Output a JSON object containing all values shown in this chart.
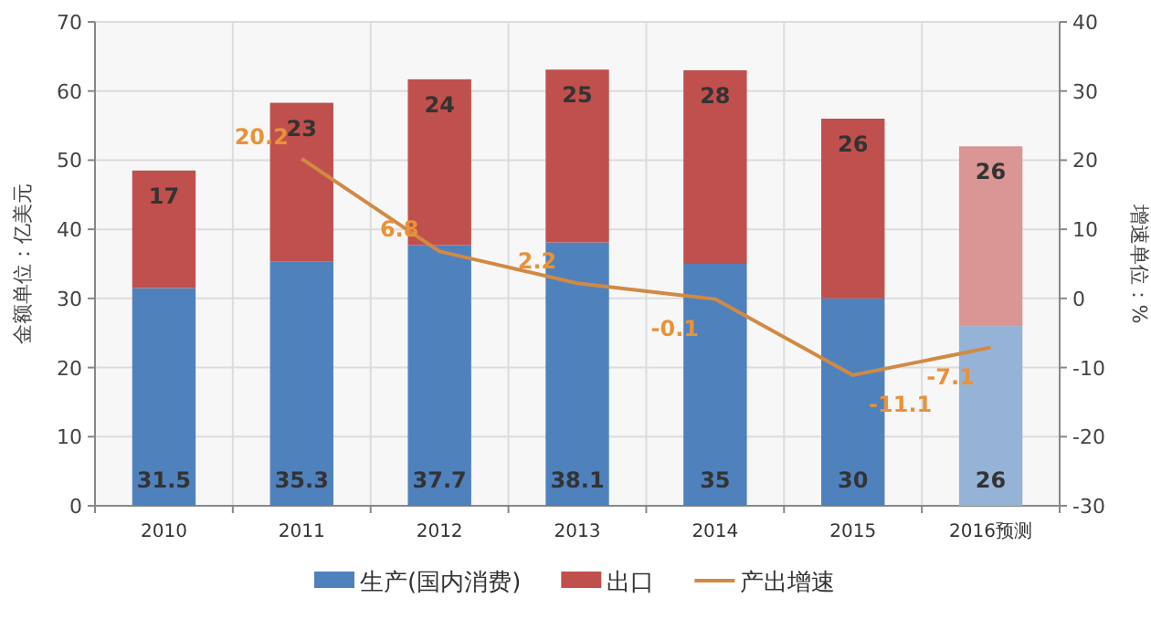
{
  "chart_data": {
    "type": "bar",
    "stacked": true,
    "categories": [
      "2010",
      "2011",
      "2012",
      "2013",
      "2014",
      "2015",
      "2016预测"
    ],
    "ylabel": "金额单位：亿美元",
    "y2label": "增速单位：%",
    "ylim": [
      0,
      70
    ],
    "yticks": [
      0,
      10,
      20,
      30,
      40,
      50,
      60,
      70
    ],
    "y2lim": [
      -30,
      40
    ],
    "y2ticks": [
      -30,
      -20,
      -10,
      0,
      10,
      20,
      30,
      40
    ],
    "grid": true,
    "legend": "bottom",
    "data_labels": true,
    "series": [
      {
        "name": "生产(国内消费)",
        "color": "#4f81bd",
        "colors": [
          "#4f81bd",
          "#4f81bd",
          "#4f81bd",
          "#4f81bd",
          "#4f81bd",
          "#4f81bd",
          "#95b3d7"
        ],
        "values": [
          31.5,
          35.3,
          37.7,
          38.1,
          35,
          30,
          26
        ]
      },
      {
        "name": "出口",
        "color": "#c0504d",
        "colors": [
          "#c0504d",
          "#c0504d",
          "#c0504d",
          "#c0504d",
          "#c0504d",
          "#c0504d",
          "#d99694"
        ],
        "values": [
          17,
          23,
          24,
          25,
          28,
          26,
          26
        ]
      },
      {
        "name": "产出增速",
        "type": "line",
        "axis": "y2",
        "color": "#d08a45",
        "values": [
          null,
          20.2,
          6.8,
          2.2,
          -0.1,
          -11.1,
          -7.1
        ]
      }
    ]
  }
}
